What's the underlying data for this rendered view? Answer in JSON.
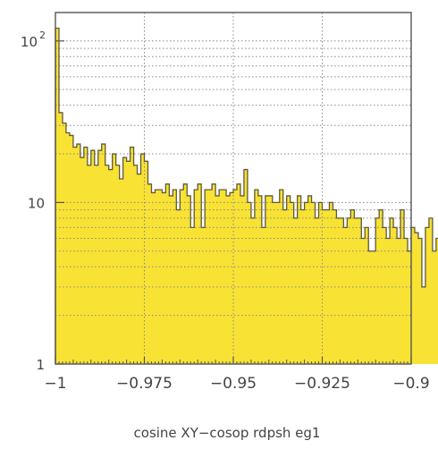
{
  "chart_data": {
    "type": "bar",
    "histogram": true,
    "xlabel": "cosine  XY−cosop rdpsh eg1",
    "ylabel": "",
    "title": "",
    "xlim": [
      -1,
      -0.9
    ],
    "ylim": [
      1,
      150
    ],
    "yscale": "log",
    "grid": true,
    "bin_width": 0.001,
    "bin_start": -1,
    "x_tick_values": [
      -1,
      -0.975,
      -0.95,
      -0.925,
      -0.9
    ],
    "x_tick_labels": [
      "−1",
      "−0.975",
      "−0.95",
      "−0.925",
      "−0.9"
    ],
    "y_ticks": [
      {
        "value": 100,
        "base": "10",
        "exp": "2"
      },
      {
        "value": 10,
        "base": "10",
        "exp": ""
      },
      {
        "value": 1,
        "base": "1",
        "exp": ""
      }
    ],
    "values": [
      120,
      36,
      31,
      27,
      26,
      22,
      23,
      19,
      22,
      17,
      21,
      17,
      21,
      23,
      17,
      16,
      20,
      17,
      14,
      19,
      18,
      22,
      17,
      15,
      20,
      18,
      13,
      11.5,
      12,
      12,
      11.5,
      13,
      11,
      12,
      9,
      12,
      13,
      11,
      7,
      12,
      13,
      7,
      12,
      12,
      13,
      11,
      12,
      12,
      11,
      11.5,
      12,
      13,
      11,
      16,
      10,
      8,
      12,
      11,
      7,
      11,
      11,
      10,
      10,
      12,
      9,
      11,
      10,
      8,
      11,
      9,
      10,
      11,
      10,
      8,
      10,
      9,
      9,
      10,
      9,
      8,
      8,
      7,
      8,
      9,
      8,
      8,
      6,
      7,
      5,
      5,
      8,
      9,
      7,
      6,
      8,
      7,
      6,
      9,
      6,
      5,
      7,
      6.5,
      6,
      3,
      7,
      8,
      5,
      6,
      7,
      6,
      8,
      6,
      7,
      6,
      7,
      8,
      7,
      5,
      3,
      8,
      3,
      7,
      6,
      5,
      6,
      7,
      6,
      5,
      6,
      6,
      5,
      6.5,
      5,
      6,
      7,
      8,
      6,
      6,
      4,
      5,
      7,
      7,
      8,
      5,
      3
    ]
  },
  "colors": {
    "fill": "#f8e234",
    "line": "#5f5a3a",
    "grid": "#8a8a8a",
    "frame": "#555555",
    "text": "#444444"
  }
}
